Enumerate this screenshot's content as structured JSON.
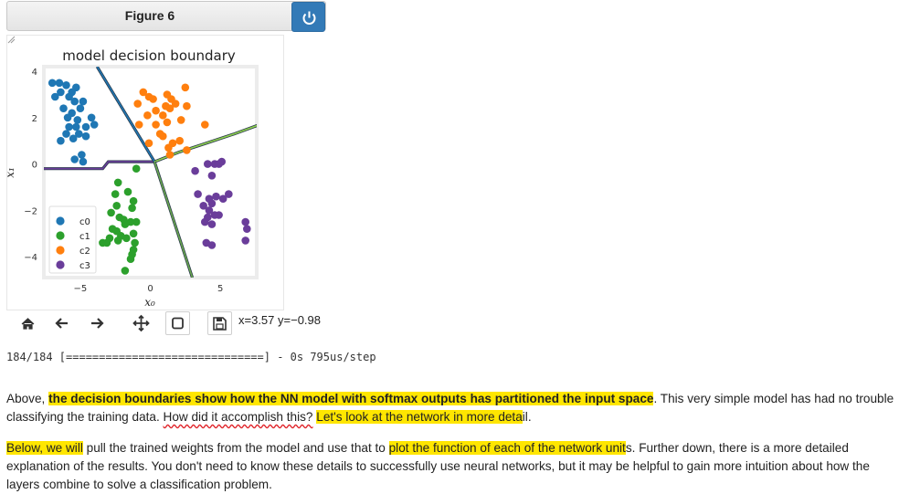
{
  "figure": {
    "title": "Figure 6",
    "power_icon": "power-icon",
    "header_color": "#337ab7"
  },
  "chart_data": {
    "type": "scatter",
    "title": "model decision boundary",
    "xlabel": "x₀",
    "ylabel": "x₁",
    "xlim": [
      -7.6,
      7.6
    ],
    "ylim": [
      -4.9,
      4.2
    ],
    "xticks": [
      -5,
      0,
      5
    ],
    "yticks": [
      4,
      2,
      0,
      -2,
      -4
    ],
    "legend": {
      "placement": "lower-left",
      "entries": [
        "c0",
        "c1",
        "c2",
        "c3"
      ]
    },
    "colors": {
      "c0": "#1f77b4",
      "c1": "#2ca02c",
      "c2": "#ff7f0e",
      "c3": "#6a3d9a"
    },
    "series": [
      {
        "name": "c0",
        "color": "#1f77b4",
        "points": [
          [
            -7,
            3.5
          ],
          [
            -6.5,
            3.5
          ],
          [
            -6,
            3.4
          ],
          [
            -5.3,
            3.3
          ],
          [
            -6.4,
            3.1
          ],
          [
            -5.6,
            3.1
          ],
          [
            -6.8,
            2.9
          ],
          [
            -5.8,
            2.9
          ],
          [
            -5.4,
            2.7
          ],
          [
            -4.8,
            2.7
          ],
          [
            -5,
            2.4
          ],
          [
            -6.2,
            2.4
          ],
          [
            -5.6,
            2.2
          ],
          [
            -5.9,
            2
          ],
          [
            -5.2,
            1.9
          ],
          [
            -4.2,
            2
          ],
          [
            -5.8,
            1.6
          ],
          [
            -5.3,
            1.6
          ],
          [
            -4.6,
            1.6
          ],
          [
            -4,
            1.7
          ],
          [
            -6,
            1.3
          ],
          [
            -5.1,
            1.3
          ],
          [
            -4.6,
            1.2
          ],
          [
            -5.5,
            1.1
          ],
          [
            -6.4,
            1
          ],
          [
            -4.9,
            0.4
          ],
          [
            -5.4,
            0.2
          ],
          [
            -4.8,
            0.1
          ]
        ]
      },
      {
        "name": "c1",
        "color": "#2ca02c",
        "points": [
          [
            -1,
            -0.2
          ],
          [
            -2.3,
            -0.8
          ],
          [
            -2.5,
            -1.3
          ],
          [
            -1.6,
            -1.2
          ],
          [
            -1.2,
            -1.6
          ],
          [
            -2.4,
            -1.8
          ],
          [
            -1.3,
            -1.9
          ],
          [
            -2.8,
            -2.1
          ],
          [
            -2.2,
            -2.3
          ],
          [
            -1.9,
            -2.4
          ],
          [
            -1.4,
            -2.5
          ],
          [
            -1,
            -2.5
          ],
          [
            -1.8,
            -2.6
          ],
          [
            -2.7,
            -2.8
          ],
          [
            -2.4,
            -2.9
          ],
          [
            -2.1,
            -3.1
          ],
          [
            -1.7,
            -3.2
          ],
          [
            -1.2,
            -3
          ],
          [
            -1.1,
            -3.4
          ],
          [
            -2.9,
            -3.2
          ],
          [
            -3.4,
            -3.4
          ],
          [
            -3.1,
            -3.4
          ],
          [
            -2.3,
            -3.3
          ],
          [
            -1.2,
            -3.7
          ],
          [
            -1.3,
            -3.9
          ],
          [
            -1.4,
            -4.1
          ],
          [
            -1.8,
            -4.6
          ]
        ]
      },
      {
        "name": "c2",
        "color": "#ff7f0e",
        "points": [
          [
            2.5,
            3.3
          ],
          [
            -0.5,
            3.1
          ],
          [
            -0.1,
            2.9
          ],
          [
            1.2,
            3
          ],
          [
            0.2,
            2.8
          ],
          [
            1.5,
            2.8
          ],
          [
            1.8,
            2.6
          ],
          [
            -0.9,
            2.6
          ],
          [
            1.1,
            2.5
          ],
          [
            2.6,
            2.5
          ],
          [
            1.4,
            2.4
          ],
          [
            0.4,
            2.3
          ],
          [
            -0.2,
            2.1
          ],
          [
            0.9,
            2.1
          ],
          [
            0.4,
            1.7
          ],
          [
            1.2,
            1.8
          ],
          [
            2.2,
            1.9
          ],
          [
            -0.8,
            1.7
          ],
          [
            3.9,
            1.7
          ],
          [
            0.9,
            1.2
          ],
          [
            -0.1,
            0.9
          ],
          [
            0.7,
            1.3
          ],
          [
            2.1,
            1
          ],
          [
            1.3,
            0.7
          ],
          [
            2.6,
            0.6
          ],
          [
            1.4,
            0.4
          ],
          [
            1.6,
            0.9
          ]
        ]
      },
      {
        "name": "c3",
        "color": "#6a3d9a",
        "points": [
          [
            3.2,
            -0.3
          ],
          [
            4.1,
            0
          ],
          [
            4.6,
            0
          ],
          [
            5.1,
            0.1
          ],
          [
            4.9,
            0
          ],
          [
            4.4,
            -0.5
          ],
          [
            3.4,
            -1.3
          ],
          [
            5.6,
            -1.3
          ],
          [
            5.2,
            -1.5
          ],
          [
            4.7,
            -1.4
          ],
          [
            4.2,
            -1.5
          ],
          [
            4.4,
            -1.7
          ],
          [
            3.8,
            -1.8
          ],
          [
            4.9,
            -2.2
          ],
          [
            4.2,
            -2
          ],
          [
            4.6,
            -2.2
          ],
          [
            4.1,
            -2.3
          ],
          [
            3.9,
            -2.5
          ],
          [
            4.4,
            -2.6
          ],
          [
            6.8,
            -2.5
          ],
          [
            6.9,
            -2.8
          ],
          [
            4,
            -3.4
          ],
          [
            4.4,
            -3.5
          ],
          [
            6.8,
            -3.3
          ]
        ]
      }
    ],
    "boundaries": [
      {
        "color": "#6a3d9a",
        "points": [
          [
            -7.9,
            -0.2
          ],
          [
            -3.4,
            -0.2
          ],
          [
            -3,
            0.1
          ],
          [
            0.3,
            0.1
          ]
        ]
      },
      {
        "color": "#1f77b4",
        "points": [
          [
            -3.8,
            4.2
          ],
          [
            0.3,
            0.1
          ]
        ]
      },
      {
        "color": "#8fd14f",
        "points": [
          [
            0.3,
            0.1
          ],
          [
            2,
            0.5
          ],
          [
            4,
            0.9
          ],
          [
            6,
            1.3
          ],
          [
            7.8,
            1.7
          ]
        ]
      },
      {
        "color": "#6aa84f",
        "points": [
          [
            0.3,
            0.1
          ],
          [
            3,
            -4.9
          ]
        ]
      }
    ]
  },
  "toolbar": {
    "icons": [
      "home-icon",
      "back-arrow-icon",
      "forward-arrow-icon",
      "pan-icon",
      "zoom-rect-icon",
      "save-icon"
    ],
    "home": "🏠",
    "back": "←",
    "forward": "→",
    "pan": "✛",
    "zoom": "▢",
    "save": "💾",
    "coord_text": "x=3.57 y=−0.98"
  },
  "progress_line": "184/184 [==============================] - 0s 795us/step",
  "para1": {
    "s1": "Above, ",
    "s2": "the decision boundaries show how the NN model with softmax outputs has partitioned the input space",
    "s3": ". This very simple model has had no trouble classifying the training data. ",
    "s4": "How did it accomplish this?",
    "s5": " ",
    "s6": "Let's look at the network in more deta",
    "s7": "il."
  },
  "para2": {
    "s1": "Below, we will",
    "s2": " pull the trained weights from the model and use that to ",
    "s3": "plot the function of each of the network unit",
    "s4": "s. Further down, there is a more detailed explanation of the results. You don't need to know these details to successfully use neural networks, but it may be helpful to gain more intuition about how the layers combine to solve a classification problem."
  }
}
